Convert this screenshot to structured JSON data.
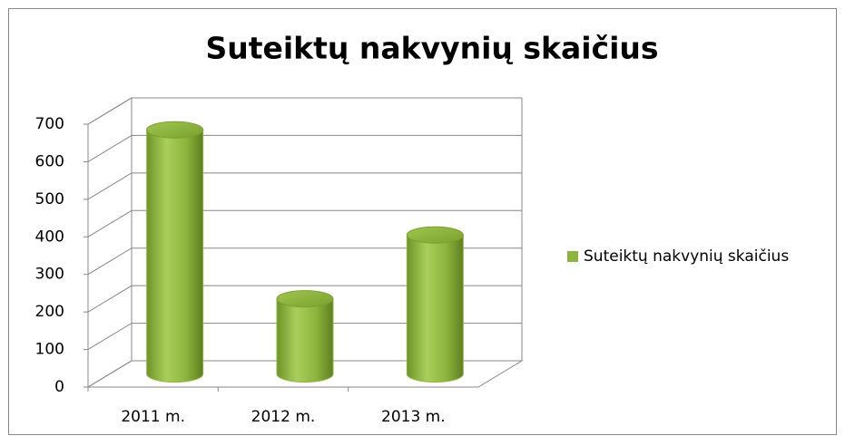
{
  "chart_data": {
    "type": "bar",
    "title": "Suteiktų nakvynių skaičius",
    "categories": [
      "2011 m.",
      "2012 m.",
      "2013 m."
    ],
    "series": [
      {
        "name": "Suteiktų nakvynių skaičius",
        "color": "#8db43c",
        "values": [
          650,
          200,
          370
        ]
      }
    ],
    "ylim": [
      0,
      700
    ],
    "yticks": [
      0,
      100,
      200,
      300,
      400,
      500,
      600,
      700
    ],
    "grid": true,
    "legend": "right"
  }
}
